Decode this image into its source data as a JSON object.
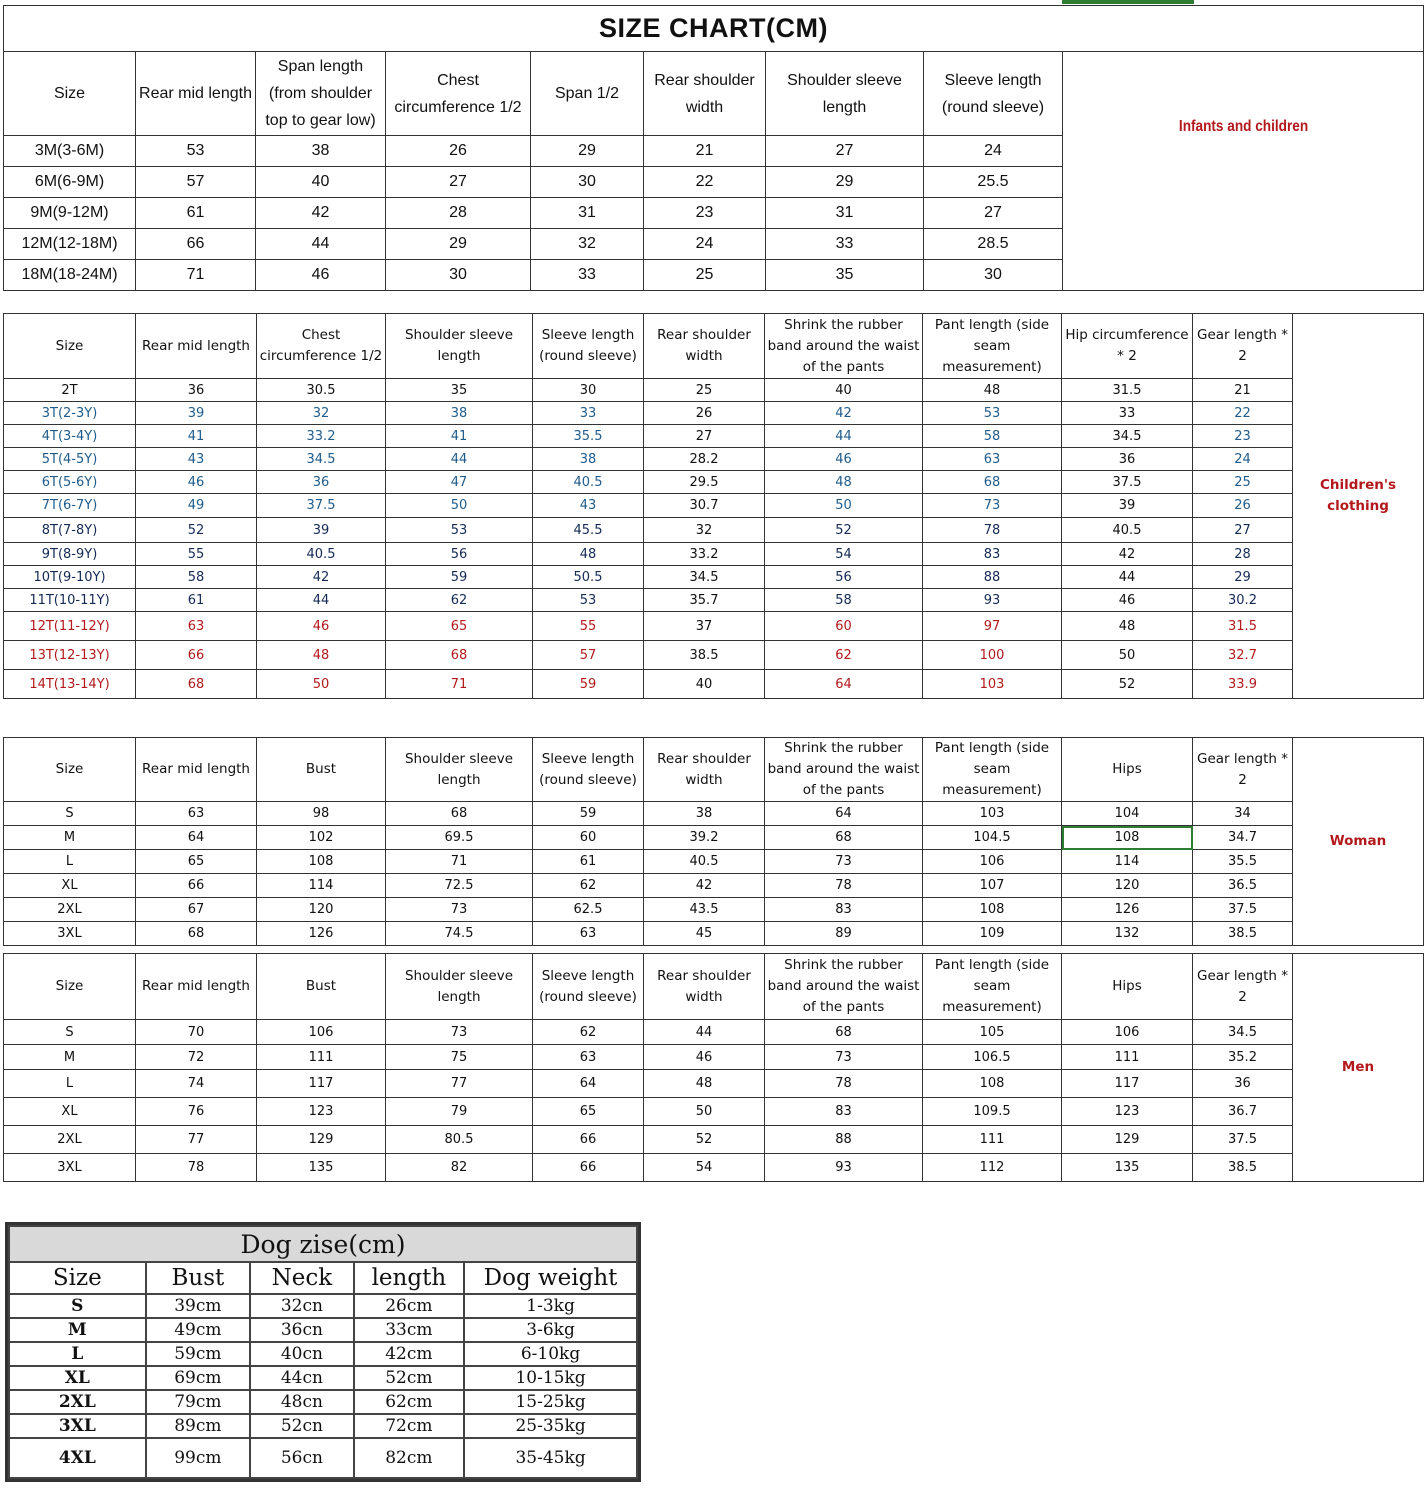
{
  "title": "SIZE CHART(CM)",
  "colors": {
    "red": "#b3191c",
    "blue": "#1f5c8c",
    "navy": "#142a55",
    "black": "#111111"
  },
  "infants": {
    "label": "Infants and children",
    "headers": [
      "Size",
      "Rear mid length",
      "Span length (from shoulder top to gear low)",
      "Chest circumference 1/2",
      "Span 1/2",
      "Rear shoulder width",
      "Shoulder sleeve length",
      "Sleeve length (round sleeve)"
    ],
    "rows": [
      [
        "3M(3-6M)",
        "53",
        "38",
        "26",
        "29",
        "21",
        "27",
        "24"
      ],
      [
        "6M(6-9M)",
        "57",
        "40",
        "27",
        "30",
        "22",
        "29",
        "25.5"
      ],
      [
        "9M(9-12M)",
        "61",
        "42",
        "28",
        "31",
        "23",
        "31",
        "27"
      ],
      [
        "12M(12-18M)",
        "66",
        "44",
        "29",
        "32",
        "24",
        "33",
        "28.5"
      ],
      [
        "18M(18-24M)",
        "71",
        "46",
        "30",
        "33",
        "25",
        "35",
        "30"
      ]
    ]
  },
  "children": {
    "label": "Children's clothing",
    "headers": [
      "Size",
      "Rear mid length",
      "Chest circumference 1/2",
      "Shoulder sleeve length",
      "Sleeve length (round sleeve)",
      "Rear shoulder width",
      "Shrink the rubber band around the waist of the pants",
      "Pant length (side seam measurement)",
      "Hip circumference * 2",
      "Gear length * 2"
    ],
    "row_colors": [
      "black",
      "blue",
      "blue",
      "blue",
      "blue",
      "blue",
      "navy",
      "navy",
      "navy",
      "navy",
      "red",
      "red",
      "red"
    ],
    "black_columns": [
      5,
      8
    ],
    "rows": [
      [
        "2T",
        "36",
        "30.5",
        "35",
        "30",
        "25",
        "40",
        "48",
        "31.5",
        "21"
      ],
      [
        "3T(2-3Y)",
        "39",
        "32",
        "38",
        "33",
        "26",
        "42",
        "53",
        "33",
        "22"
      ],
      [
        "4T(3-4Y)",
        "41",
        "33.2",
        "41",
        "35.5",
        "27",
        "44",
        "58",
        "34.5",
        "23"
      ],
      [
        "5T(4-5Y)",
        "43",
        "34.5",
        "44",
        "38",
        "28.2",
        "46",
        "63",
        "36",
        "24"
      ],
      [
        "6T(5-6Y)",
        "46",
        "36",
        "47",
        "40.5",
        "29.5",
        "48",
        "68",
        "37.5",
        "25"
      ],
      [
        "7T(6-7Y)",
        "49",
        "37.5",
        "50",
        "43",
        "30.7",
        "50",
        "73",
        "39",
        "26"
      ],
      [
        "8T(7-8Y)",
        "52",
        "39",
        "53",
        "45.5",
        "32",
        "52",
        "78",
        "40.5",
        "27"
      ],
      [
        "9T(8-9Y)",
        "55",
        "40.5",
        "56",
        "48",
        "33.2",
        "54",
        "83",
        "42",
        "28"
      ],
      [
        "10T(9-10Y)",
        "58",
        "42",
        "59",
        "50.5",
        "34.5",
        "56",
        "88",
        "44",
        "29"
      ],
      [
        "11T(10-11Y)",
        "61",
        "44",
        "62",
        "53",
        "35.7",
        "58",
        "93",
        "46",
        "30.2"
      ],
      [
        "12T(11-12Y)",
        "63",
        "46",
        "65",
        "55",
        "37",
        "60",
        "97",
        "48",
        "31.5"
      ],
      [
        "13T(12-13Y)",
        "66",
        "48",
        "68",
        "57",
        "38.5",
        "62",
        "100",
        "50",
        "32.7"
      ],
      [
        "14T(13-14Y)",
        "68",
        "50",
        "71",
        "59",
        "40",
        "64",
        "103",
        "52",
        "33.9"
      ]
    ]
  },
  "woman": {
    "label": "Woman",
    "headers": [
      "Size",
      "Rear mid length",
      "Bust",
      "Shoulder sleeve length",
      "Sleeve length (round sleeve)",
      "Rear shoulder width",
      "Shrink the rubber band around the waist of the pants",
      "Pant length (side seam measurement)",
      "Hips",
      "Gear length * 2"
    ],
    "rows": [
      [
        "S",
        "63",
        "98",
        "68",
        "59",
        "38",
        "64",
        "103",
        "104",
        "34"
      ],
      [
        "M",
        "64",
        "102",
        "69.5",
        "60",
        "39.2",
        "68",
        "104.5",
        "108",
        "34.7"
      ],
      [
        "L",
        "65",
        "108",
        "71",
        "61",
        "40.5",
        "73",
        "106",
        "114",
        "35.5"
      ],
      [
        "XL",
        "66",
        "114",
        "72.5",
        "62",
        "42",
        "78",
        "107",
        "120",
        "36.5"
      ],
      [
        "2XL",
        "67",
        "120",
        "73",
        "62.5",
        "43.5",
        "83",
        "108",
        "126",
        "37.5"
      ],
      [
        "3XL",
        "68",
        "126",
        "74.5",
        "63",
        "45",
        "89",
        "109",
        "132",
        "38.5"
      ]
    ]
  },
  "men": {
    "label": "Men",
    "headers": [
      "Size",
      "Rear mid length",
      "Bust",
      "Shoulder sleeve length",
      "Sleeve length (round sleeve)",
      "Rear shoulder width",
      "Shrink the rubber band around the waist of the pants",
      "Pant length (side seam measurement)",
      "Hips",
      "Gear length * 2"
    ],
    "rows": [
      [
        "S",
        "70",
        "106",
        "73",
        "62",
        "44",
        "68",
        "105",
        "106",
        "34.5"
      ],
      [
        "M",
        "72",
        "111",
        "75",
        "63",
        "46",
        "73",
        "106.5",
        "111",
        "35.2"
      ],
      [
        "L",
        "74",
        "117",
        "77",
        "64",
        "48",
        "78",
        "108",
        "117",
        "36"
      ],
      [
        "XL",
        "76",
        "123",
        "79",
        "65",
        "50",
        "83",
        "109.5",
        "123",
        "36.7"
      ],
      [
        "2XL",
        "77",
        "129",
        "80.5",
        "66",
        "52",
        "88",
        "111",
        "129",
        "37.5"
      ],
      [
        "3XL",
        "78",
        "135",
        "82",
        "66",
        "54",
        "93",
        "112",
        "135",
        "38.5"
      ]
    ]
  },
  "dog": {
    "title": "Dog zise(cm)",
    "headers": [
      "Size",
      "Bust",
      "Neck",
      "length",
      "Dog weight"
    ],
    "rows": [
      [
        "S",
        "39cm",
        "32cn",
        "26cm",
        "1-3kg"
      ],
      [
        "M",
        "49cm",
        "36cn",
        "33cm",
        "3-6kg"
      ],
      [
        "L",
        "59cm",
        "40cn",
        "42cm",
        "6-10kg"
      ],
      [
        "XL",
        "69cm",
        "44cn",
        "52cm",
        "10-15kg"
      ],
      [
        "2XL",
        "79cm",
        "48cn",
        "62cm",
        "15-25kg"
      ],
      [
        "3XL",
        "89cm",
        "52cn",
        "72cm",
        "25-35kg"
      ],
      [
        "4XL",
        "99cm",
        "56cn",
        "82cm",
        "35-45kg"
      ]
    ]
  }
}
